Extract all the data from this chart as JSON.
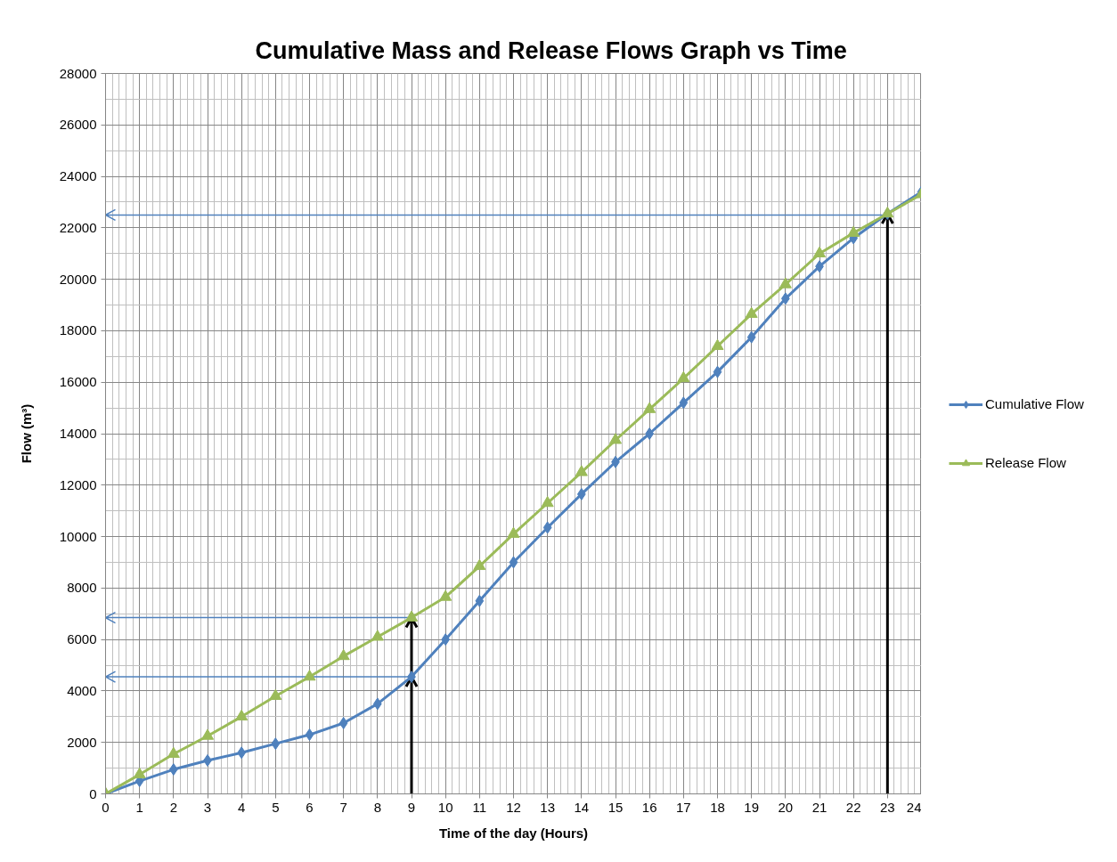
{
  "chart_data": {
    "type": "line",
    "title": "Cumulative Mass and Release Flows Graph vs Time",
    "xlabel": "Time of the day (Hours)",
    "ylabel": "Flow (m³)",
    "x": [
      0,
      1,
      2,
      3,
      4,
      5,
      6,
      7,
      8,
      9,
      10,
      11,
      12,
      13,
      14,
      15,
      16,
      17,
      18,
      19,
      20,
      21,
      22,
      23,
      24
    ],
    "xlim": [
      0,
      24
    ],
    "ylim": [
      0,
      28000
    ],
    "xticks": [
      0,
      1,
      2,
      3,
      4,
      5,
      6,
      7,
      8,
      9,
      10,
      11,
      12,
      13,
      14,
      15,
      16,
      17,
      18,
      19,
      20,
      21,
      22,
      23,
      24
    ],
    "yticks": [
      0,
      2000,
      4000,
      6000,
      8000,
      10000,
      12000,
      14000,
      16000,
      18000,
      20000,
      22000,
      24000,
      26000,
      28000
    ],
    "grid": true,
    "legend": "right",
    "ref_lines": [
      {
        "axis": "y",
        "value": 22500,
        "color": "#4f81bd"
      },
      {
        "axis": "y",
        "value": 6850,
        "color": "#4f81bd"
      },
      {
        "axis": "y",
        "value": 4550,
        "color": "#4f81bd"
      },
      {
        "axis": "x",
        "value": 9,
        "color": "#000000"
      },
      {
        "axis": "x",
        "value": 23,
        "color": "#000000"
      }
    ],
    "series": [
      {
        "name": "Cumulative Flow",
        "color": "#4f81bd",
        "marker": "diamond",
        "values": [
          0,
          500,
          950,
          1300,
          1600,
          1950,
          2300,
          2750,
          3500,
          4550,
          6000,
          7500,
          9000,
          10350,
          11650,
          12900,
          14000,
          15200,
          16400,
          17750,
          19250,
          20500,
          21600,
          22550,
          23400
        ]
      },
      {
        "name": "Release Flow",
        "color": "#9bbb59",
        "marker": "triangle",
        "values": [
          0,
          750,
          1550,
          2250,
          3000,
          3800,
          4550,
          5350,
          6100,
          6850,
          7650,
          8850,
          10100,
          11300,
          12500,
          13750,
          14950,
          16150,
          17400,
          18650,
          19800,
          21000,
          21800,
          22550,
          23300
        ]
      }
    ]
  }
}
